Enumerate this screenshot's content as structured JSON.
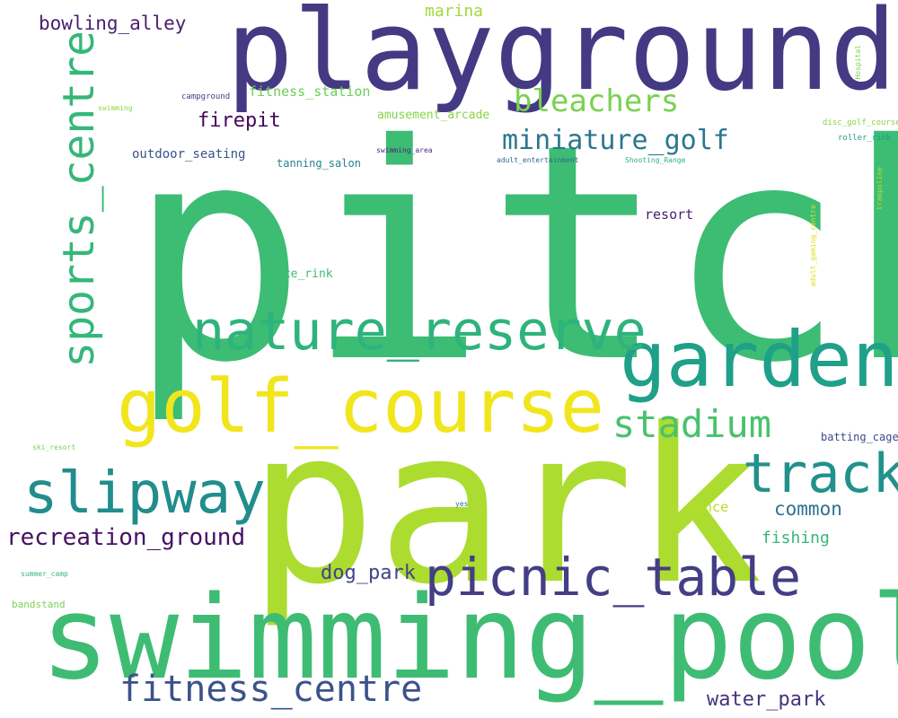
{
  "words": [
    {
      "text": "pitch",
      "color": "#3dbc74"
    },
    {
      "text": "park",
      "color": "#addc30"
    },
    {
      "text": "swimming_pool",
      "color": "#3fbc73"
    },
    {
      "text": "playground",
      "color": "#443a83"
    },
    {
      "text": "golf_course",
      "color": "#f1e51d"
    },
    {
      "text": "garden",
      "color": "#1fa088"
    },
    {
      "text": "nature_reserve",
      "color": "#2eb37c"
    },
    {
      "text": "slipway",
      "color": "#228d8d"
    },
    {
      "text": "picnic_table",
      "color": "#433e85"
    },
    {
      "text": "track",
      "color": "#21918c"
    },
    {
      "text": "sports_centre",
      "color": "#35b779"
    },
    {
      "text": "stadium",
      "color": "#4ac16d"
    },
    {
      "text": "fitness_centre",
      "color": "#3b528b"
    },
    {
      "text": "bleachers",
      "color": "#7ad151"
    },
    {
      "text": "miniature_golf",
      "color": "#2a788e"
    },
    {
      "text": "recreation_ground",
      "color": "#471063"
    },
    {
      "text": "bowling_alley",
      "color": "#481f70"
    },
    {
      "text": "water_park",
      "color": "#46327e"
    },
    {
      "text": "firepit",
      "color": "#450457"
    },
    {
      "text": "dog_park",
      "color": "#414487"
    },
    {
      "text": "common",
      "color": "#2c728e"
    },
    {
      "text": "fishing",
      "color": "#35b779"
    },
    {
      "text": "marina",
      "color": "#a0da39"
    },
    {
      "text": "fitness_station",
      "color": "#6ece58"
    },
    {
      "text": "amusement_arcade",
      "color": "#86d549"
    },
    {
      "text": "outdoor_seating",
      "color": "#3b528b"
    },
    {
      "text": "tanning_salon",
      "color": "#26828e"
    },
    {
      "text": "resort",
      "color": "#482173"
    },
    {
      "text": "dance",
      "color": "#b5de2b"
    },
    {
      "text": "ice_rink",
      "color": "#3dbc74"
    },
    {
      "text": "batting_cage",
      "color": "#3e4989"
    },
    {
      "text": "bandstand",
      "color": "#7ad151"
    },
    {
      "text": "campground",
      "color": "#433e85"
    },
    {
      "text": "swimming_area",
      "color": "#482878"
    },
    {
      "text": "adult_entertainment",
      "color": "#31688e"
    },
    {
      "text": "Shooting_Range",
      "color": "#2db27d"
    },
    {
      "text": "disc_golf_course",
      "color": "#86d549"
    },
    {
      "text": "roller_rink",
      "color": "#1e9b8a"
    },
    {
      "text": "swimming",
      "color": "#8fd744"
    },
    {
      "text": "ski_resort",
      "color": "#7ad151"
    },
    {
      "text": "summer_camp",
      "color": "#35b779"
    },
    {
      "text": "yes",
      "color": "#2a788e"
    },
    {
      "text": "Hospital",
      "color": "#7ad151"
    },
    {
      "text": "trampoline",
      "color": "#b5de2b"
    },
    {
      "text": "adult_gaming_centre",
      "color": "#d8e219"
    }
  ]
}
